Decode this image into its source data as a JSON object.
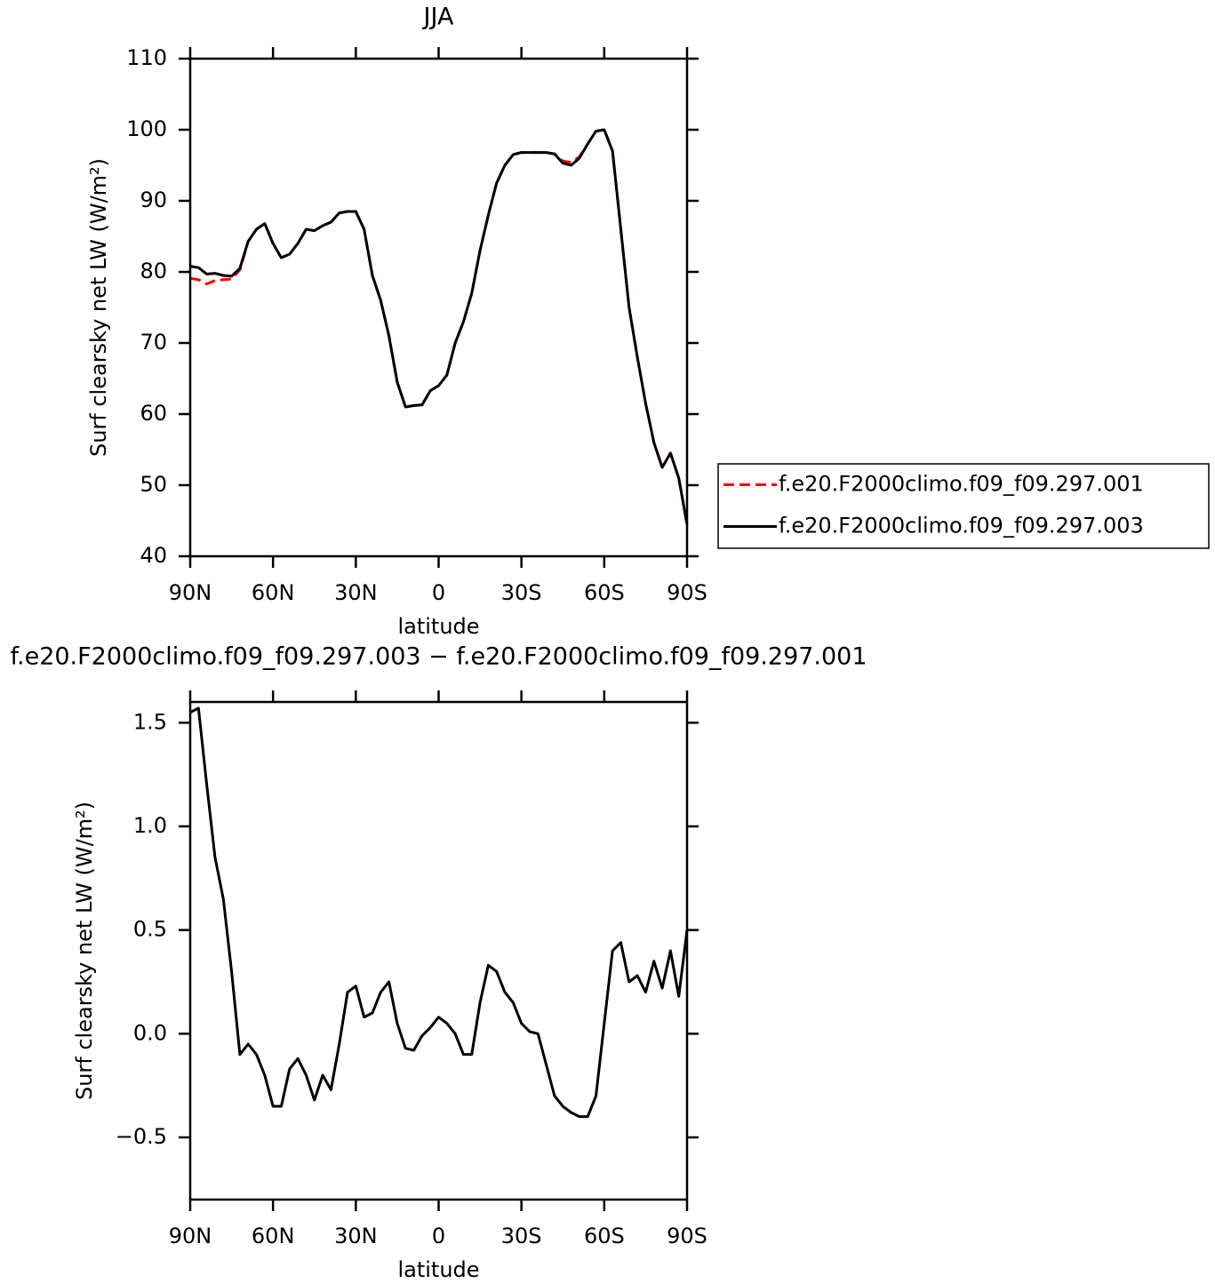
{
  "chart_data": [
    {
      "type": "line",
      "title": "JJA",
      "xlabel": "latitude",
      "ylabel": "Surf clearsky net LW (W/m²)",
      "x": [
        90,
        87,
        84,
        81,
        78,
        75,
        72,
        69,
        66,
        63,
        60,
        57,
        54,
        51,
        48,
        45,
        42,
        39,
        36,
        33,
        30,
        27,
        24,
        21,
        18,
        15,
        12,
        9,
        6,
        3,
        0,
        -3,
        -6,
        -9,
        -12,
        -15,
        -18,
        -21,
        -24,
        -27,
        -30,
        -33,
        -36,
        -39,
        -42,
        -45,
        -48,
        -51,
        -54,
        -57,
        -60,
        -63,
        -66,
        -69,
        -72,
        -75,
        -78,
        -81,
        -84,
        -87,
        -90
      ],
      "xlim": [
        90,
        -90
      ],
      "xticks": [
        {
          "value": 90,
          "label": "90N"
        },
        {
          "value": 60,
          "label": "60N"
        },
        {
          "value": 30,
          "label": "30N"
        },
        0,
        {
          "value": -30,
          "label": "30S"
        },
        {
          "value": -60,
          "label": "60S"
        },
        {
          "value": -90,
          "label": "90S"
        }
      ],
      "ylim": [
        40,
        110
      ],
      "yticks": [
        40,
        50,
        60,
        70,
        80,
        90,
        100,
        110
      ],
      "legend": "right",
      "series": [
        {
          "name": "f.e20.F2000climo.f09_f09.297.001",
          "color": "#ff0000",
          "dashed": true,
          "values": [
            79.1,
            78.9,
            78.3,
            78.8,
            78.9,
            79.0,
            80.3,
            84.3,
            86.0,
            86.8,
            84.0,
            82.0,
            82.5,
            84.0,
            86.0,
            85.8,
            86.5,
            87.0,
            88.3,
            88.5,
            88.5,
            86.0,
            79.5,
            76.0,
            71.0,
            64.5,
            61.0,
            61.2,
            61.3,
            63.3,
            64.0,
            65.5,
            70.0,
            73.0,
            77.0,
            83.0,
            88.0,
            92.5,
            95.0,
            96.5,
            96.8,
            96.8,
            96.8,
            96.8,
            96.6,
            95.6,
            95.4,
            96.2,
            98.0,
            99.8,
            100.0,
            97.0,
            86.0,
            75.0,
            68.0,
            61.5,
            56.0,
            52.5,
            54.5,
            51.0,
            44.5
          ]
        },
        {
          "name": "f.e20.F2000climo.f09_f09.297.003",
          "color": "#000000",
          "dashed": false,
          "values": [
            80.8,
            80.6,
            79.7,
            79.8,
            79.5,
            79.4,
            80.5,
            84.3,
            86.0,
            86.8,
            84.0,
            82.0,
            82.5,
            84.0,
            86.0,
            85.8,
            86.5,
            87.0,
            88.3,
            88.5,
            88.5,
            86.0,
            79.5,
            76.0,
            71.0,
            64.5,
            61.0,
            61.2,
            61.3,
            63.3,
            64.0,
            65.5,
            70.0,
            73.0,
            77.0,
            83.0,
            88.0,
            92.5,
            95.0,
            96.5,
            96.8,
            96.8,
            96.8,
            96.8,
            96.6,
            95.3,
            95.0,
            96.0,
            98.0,
            99.8,
            100.0,
            97.0,
            86.0,
            75.0,
            68.0,
            61.5,
            56.0,
            52.5,
            54.5,
            51.0,
            44.5
          ]
        }
      ]
    },
    {
      "type": "line",
      "title": "f.e20.F2000climo.f09_f09.297.003 − f.e20.F2000climo.f09_f09.297.001",
      "xlabel": "latitude",
      "ylabel": "Surf clearsky net LW (W/m²)",
      "x": [
        90,
        87,
        84,
        81,
        78,
        75,
        72,
        69,
        66,
        63,
        60,
        57,
        54,
        51,
        48,
        45,
        42,
        39,
        36,
        33,
        30,
        27,
        24,
        21,
        18,
        15,
        12,
        9,
        6,
        3,
        0,
        -3,
        -6,
        -9,
        -12,
        -15,
        -18,
        -21,
        -24,
        -27,
        -30,
        -33,
        -36,
        -39,
        -42,
        -45,
        -48,
        -51,
        -54,
        -57,
        -60,
        -63,
        -66,
        -69,
        -72,
        -75,
        -78,
        -81,
        -84,
        -87,
        -90
      ],
      "xlim": [
        90,
        -90
      ],
      "xticks": [
        {
          "value": 90,
          "label": "90N"
        },
        {
          "value": 60,
          "label": "60N"
        },
        {
          "value": 30,
          "label": "30N"
        },
        0,
        {
          "value": -30,
          "label": "30S"
        },
        {
          "value": -60,
          "label": "60S"
        },
        {
          "value": -90,
          "label": "90S"
        }
      ],
      "ylim": [
        -0.8,
        1.6
      ],
      "yticks": [
        {
          "value": -0.5,
          "label": "−0.5"
        },
        {
          "value": 0,
          "label": "0.0"
        },
        0.5,
        {
          "value": 1,
          "label": "1.0"
        },
        1.5
      ],
      "series": [
        {
          "color": "#000000",
          "dashed": false,
          "values": [
            1.55,
            1.57,
            1.2,
            0.85,
            0.65,
            0.3,
            -0.1,
            -0.05,
            -0.1,
            -0.2,
            -0.35,
            -0.35,
            -0.17,
            -0.12,
            -0.2,
            -0.32,
            -0.2,
            -0.27,
            -0.05,
            0.2,
            0.23,
            0.08,
            0.1,
            0.2,
            0.25,
            0.05,
            -0.07,
            -0.08,
            -0.01,
            0.03,
            0.08,
            0.05,
            0.0,
            -0.1,
            -0.1,
            0.15,
            0.33,
            0.3,
            0.2,
            0.15,
            0.05,
            0.01,
            0.0,
            -0.15,
            -0.3,
            -0.35,
            -0.38,
            -0.4,
            -0.4,
            -0.3,
            0.05,
            0.4,
            0.44,
            0.25,
            0.28,
            0.2,
            0.35,
            0.22,
            0.4,
            0.18,
            0.5
          ]
        }
      ]
    }
  ]
}
